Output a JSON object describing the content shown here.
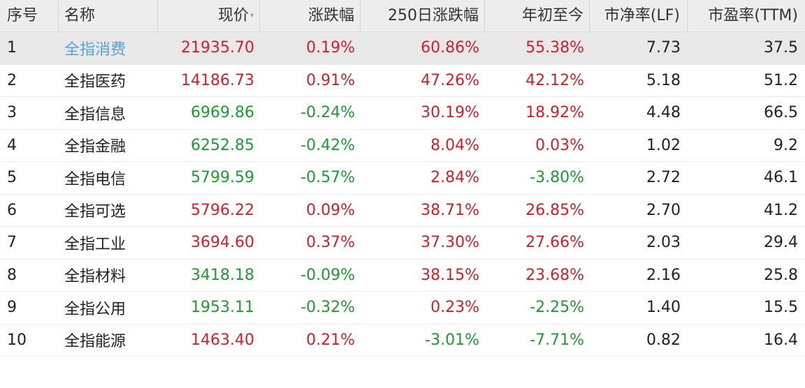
{
  "colors": {
    "up": "#d0202a",
    "down": "#1f9a2f",
    "link": "#5aa0d6",
    "header_bg": "#ededed",
    "selected_bg": "#e8e8e8"
  },
  "header": {
    "idx": "序号",
    "name": "名称",
    "price": "现价",
    "price_sort_mark": "▾",
    "chg": "涨跌幅",
    "chg250": "250日涨跌幅",
    "ytd": "年初至今",
    "pb": "市净率(LF)",
    "pe": "市盈率(TTM)"
  },
  "rows": [
    {
      "idx": "1",
      "name": "全指消费",
      "price": "21935.70",
      "chg": "0.19%",
      "chg250": "60.86%",
      "ytd": "55.38%",
      "pb": "7.73",
      "pe": "37.5"
    },
    {
      "idx": "2",
      "name": "全指医药",
      "price": "14186.73",
      "chg": "0.91%",
      "chg250": "47.26%",
      "ytd": "42.12%",
      "pb": "5.18",
      "pe": "51.2"
    },
    {
      "idx": "3",
      "name": "全指信息",
      "price": "6969.86",
      "chg": "-0.24%",
      "chg250": "30.19%",
      "ytd": "18.92%",
      "pb": "4.48",
      "pe": "66.5"
    },
    {
      "idx": "4",
      "name": "全指金融",
      "price": "6252.85",
      "chg": "-0.42%",
      "chg250": "8.04%",
      "ytd": "0.03%",
      "pb": "1.02",
      "pe": "9.2"
    },
    {
      "idx": "5",
      "name": "全指电信",
      "price": "5799.59",
      "chg": "-0.57%",
      "chg250": "2.84%",
      "ytd": "-3.80%",
      "pb": "2.72",
      "pe": "46.1"
    },
    {
      "idx": "6",
      "name": "全指可选",
      "price": "5796.22",
      "chg": "0.09%",
      "chg250": "38.71%",
      "ytd": "26.85%",
      "pb": "2.70",
      "pe": "41.2"
    },
    {
      "idx": "7",
      "name": "全指工业",
      "price": "3694.60",
      "chg": "0.37%",
      "chg250": "37.30%",
      "ytd": "27.66%",
      "pb": "2.03",
      "pe": "29.4"
    },
    {
      "idx": "8",
      "name": "全指材料",
      "price": "3418.18",
      "chg": "-0.09%",
      "chg250": "38.15%",
      "ytd": "23.68%",
      "pb": "2.16",
      "pe": "25.8"
    },
    {
      "idx": "9",
      "name": "全指公用",
      "price": "1953.11",
      "chg": "-0.32%",
      "chg250": "0.23%",
      "ytd": "-2.25%",
      "pb": "1.40",
      "pe": "15.5"
    },
    {
      "idx": "10",
      "name": "全指能源",
      "price": "1463.40",
      "chg": "0.21%",
      "chg250": "-3.01%",
      "ytd": "-7.71%",
      "pb": "0.82",
      "pe": "16.4"
    }
  ]
}
